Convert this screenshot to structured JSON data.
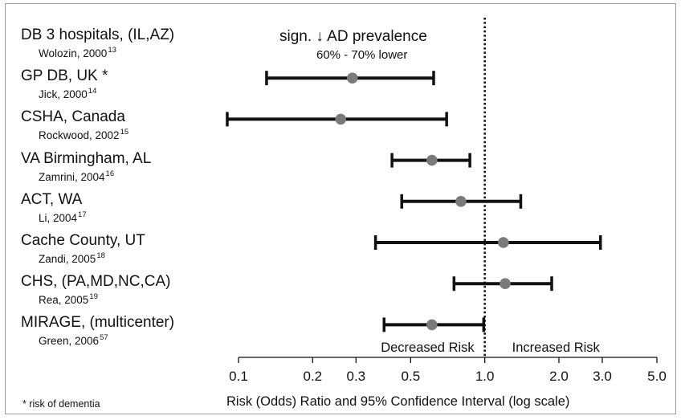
{
  "chart_data": {
    "type": "forest",
    "xscale": "log",
    "xlim": [
      0.1,
      5.0
    ],
    "x_ticks": [
      "0.1",
      "0.2",
      "0.3",
      "0.5",
      "1.0",
      "2.0",
      "3.0",
      "5.0"
    ],
    "reference_line": 1.0,
    "xlabel": "Risk (Odds) Ratio and 95% Confidence Interval (log scale)",
    "region_labels": {
      "left": "Decreased Risk",
      "right": "Increased Risk"
    },
    "annotation": {
      "main": "sign. ↓ AD prevalence",
      "sub": "60% - 70% lower"
    },
    "footnote": "* risk of dementia",
    "studies": [
      {
        "name": "DB 3 hospitals, (IL,AZ)",
        "ref": "Wolozin, 2000",
        "ref_num": "13",
        "estimate": null,
        "lower": null,
        "upper": null
      },
      {
        "name": "GP DB, UK *",
        "ref": "Jick, 2000",
        "ref_num": "14",
        "estimate": 0.29,
        "lower": 0.13,
        "upper": 0.62
      },
      {
        "name": "CSHA, Canada",
        "ref": "Rockwood, 2002",
        "ref_num": "15",
        "estimate": 0.26,
        "lower": 0.09,
        "upper": 0.7
      },
      {
        "name": "VA Birmingham, AL",
        "ref": "Zamrini, 2004",
        "ref_num": "16",
        "estimate": 0.61,
        "lower": 0.42,
        "upper": 0.87
      },
      {
        "name": "ACT, WA",
        "ref": "Li, 2004",
        "ref_num": "17",
        "estimate": 0.8,
        "lower": 0.46,
        "upper": 1.4
      },
      {
        "name": "Cache County, UT",
        "ref": "Zandi, 2005",
        "ref_num": "18",
        "estimate": 1.19,
        "lower": 0.36,
        "upper": 2.95
      },
      {
        "name": "CHS, (PA,MD,NC,CA)",
        "ref": "Rea, 2005",
        "ref_num": "19",
        "estimate": 1.21,
        "lower": 0.75,
        "upper": 1.87
      },
      {
        "name": "MIRAGE, (multicenter)",
        "ref": "Green, 2006",
        "ref_num": "57",
        "estimate": 0.61,
        "lower": 0.39,
        "upper": 0.99
      }
    ]
  }
}
